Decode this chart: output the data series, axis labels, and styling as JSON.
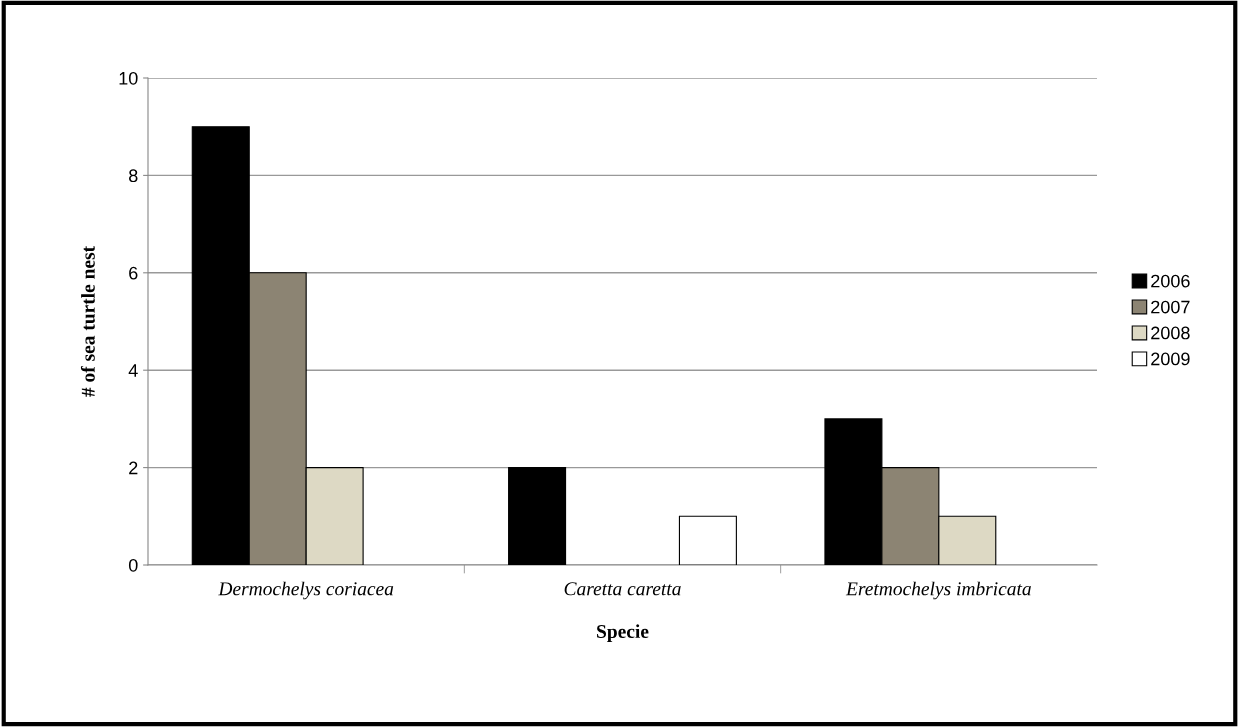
{
  "chart_data": {
    "type": "bar",
    "xlabel": "Specie",
    "ylabel": "# of sea turtle nest",
    "categories": [
      "Dermochelys coriacea",
      "Caretta caretta",
      "Eretmochelys imbricata"
    ],
    "series": [
      {
        "name": "2006",
        "color": "#000000",
        "values": [
          9,
          2,
          3
        ]
      },
      {
        "name": "2007",
        "color": "#8c8473",
        "values": [
          6,
          null,
          2
        ]
      },
      {
        "name": "2008",
        "color": "#ddd9c4",
        "values": [
          2,
          null,
          1
        ]
      },
      {
        "name": "2009",
        "color": "#ffffff",
        "values": [
          null,
          1,
          null
        ]
      }
    ],
    "ylim": [
      0,
      10
    ],
    "yticks": [
      0,
      2,
      4,
      6,
      8,
      10
    ],
    "grid": "y",
    "legend": "right"
  }
}
